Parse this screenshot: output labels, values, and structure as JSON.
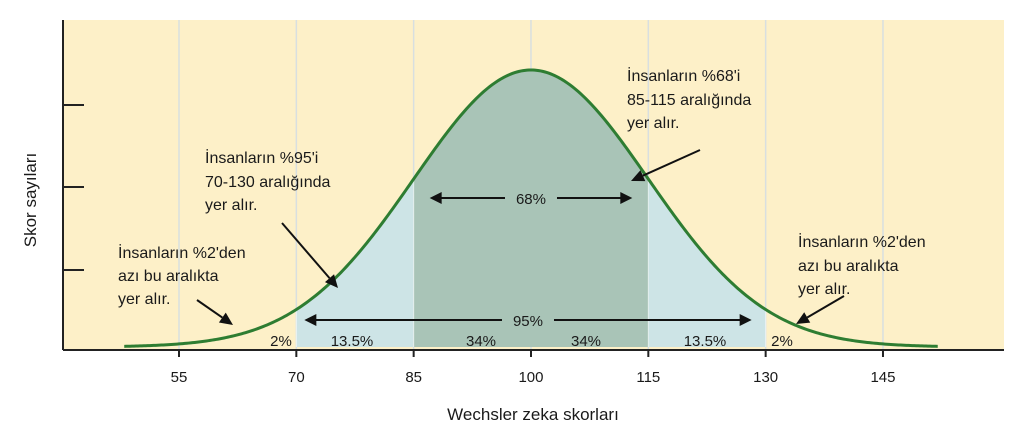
{
  "chart_data": {
    "type": "area",
    "distribution": "normal",
    "mean": 100,
    "sd": 15,
    "xlabel": "Wechsler zeka skorları",
    "ylabel": "Skor sayıları",
    "xlim": [
      45,
      155
    ],
    "x_ticks": [
      "55",
      "70",
      "85",
      "100",
      "115",
      "130",
      "145"
    ],
    "y_ticks_labeled": false,
    "grid": "vertical",
    "segments": [
      {
        "from": 45,
        "to": 70,
        "label": "2%"
      },
      {
        "from": 70,
        "to": 85,
        "label": "13.5%"
      },
      {
        "from": 85,
        "to": 100,
        "label": "34%"
      },
      {
        "from": 100,
        "to": 115,
        "label": "34%"
      },
      {
        "from": 115,
        "to": 130,
        "label": "13.5%"
      },
      {
        "from": 130,
        "to": 155,
        "label": "2%"
      }
    ],
    "spans": [
      {
        "from": 85,
        "to": 115,
        "label": "68%"
      },
      {
        "from": 70,
        "to": 130,
        "label": "95%"
      }
    ],
    "annotations": [
      {
        "lines": [
          "İnsanların %68'i",
          "85-115 aralığında",
          "yer alır."
        ]
      },
      {
        "lines": [
          "İnsanların %95'i",
          "70-130 aralığında",
          "yer alır."
        ]
      },
      {
        "lines": [
          "İnsanların %2'den",
          "azı bu aralıkta",
          "yer alır."
        ]
      },
      {
        "lines": [
          "İnsanların %2'den",
          "azı bu aralıkta",
          "yer alır."
        ]
      }
    ],
    "colors": {
      "background": "#fdf0c8",
      "curve": "#2e7d32",
      "band_68": "#a9c4b7",
      "band_95": "#cde4e6",
      "grid": "#d8dfe0",
      "axis": "#222222"
    }
  }
}
